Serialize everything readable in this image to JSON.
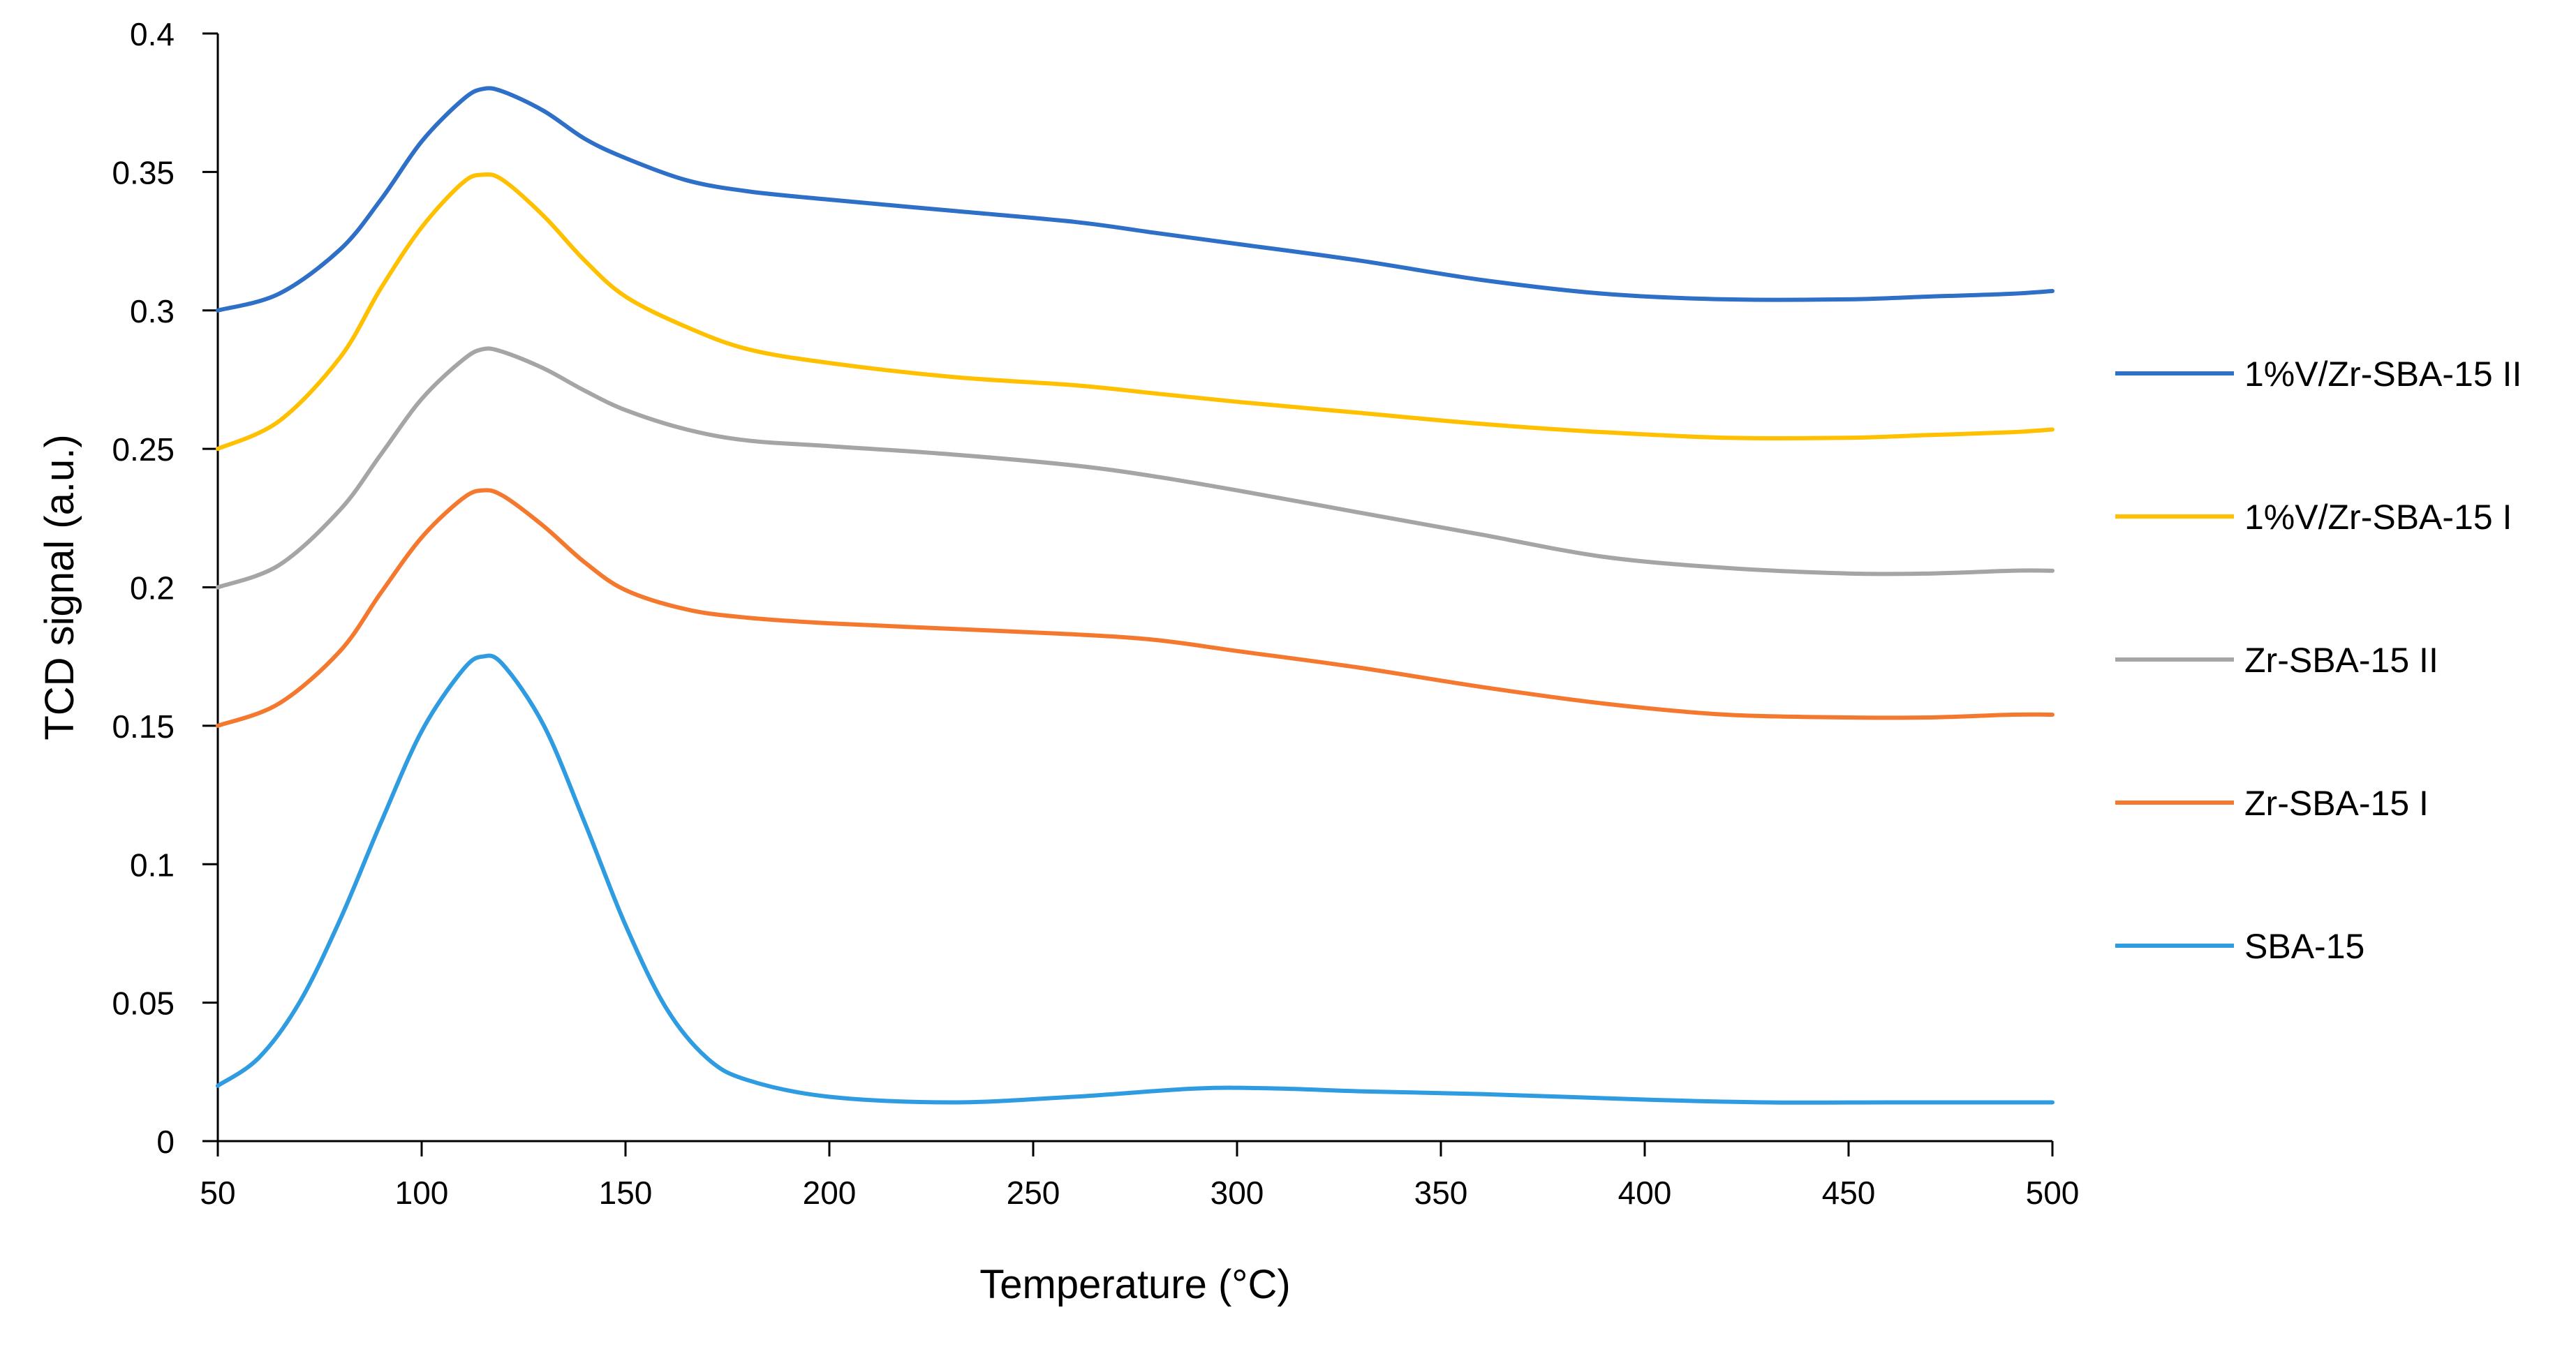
{
  "chart_data": {
    "type": "line",
    "title": "",
    "xlabel": "Temperature (°C)",
    "ylabel": "TCD signal (a.u.)",
    "xlim": [
      50,
      500
    ],
    "ylim": [
      0,
      0.4
    ],
    "grid": false,
    "legend_position": "right",
    "x_ticks": [
      "50",
      "100",
      "150",
      "200",
      "250",
      "300",
      "350",
      "400",
      "450",
      "500"
    ],
    "y_ticks": [
      "0",
      "0.05",
      "0.1",
      "0.15",
      "0.2",
      "0.25",
      "0.3",
      "0.35",
      "0.4"
    ],
    "legend_order": [
      "1%V/Zr-SBA-15 II",
      "1%V/Zr-SBA-15 I",
      "Zr-SBA-15 II",
      "Zr-SBA-15 I",
      "SBA-15"
    ],
    "series": [
      {
        "name": "1%V/Zr-SBA-15 II",
        "color": "#2E6FC8",
        "x": [
          50,
          65,
          80,
          90,
          100,
          110,
          115,
          120,
          130,
          140,
          150,
          165,
          180,
          200,
          230,
          260,
          280,
          300,
          330,
          360,
          390,
          420,
          450,
          470,
          490,
          500
        ],
        "y": [
          0.3,
          0.306,
          0.322,
          0.34,
          0.361,
          0.376,
          0.38,
          0.379,
          0.372,
          0.362,
          0.355,
          0.347,
          0.343,
          0.34,
          0.336,
          0.332,
          0.328,
          0.324,
          0.318,
          0.311,
          0.306,
          0.304,
          0.304,
          0.305,
          0.306,
          0.307
        ]
      },
      {
        "name": "1%V/Zr-SBA-15 I",
        "color": "#FFC000",
        "x": [
          50,
          65,
          80,
          90,
          100,
          110,
          115,
          120,
          130,
          140,
          150,
          165,
          180,
          200,
          230,
          260,
          280,
          300,
          330,
          360,
          390,
          420,
          450,
          470,
          490,
          500
        ],
        "y": [
          0.25,
          0.26,
          0.283,
          0.308,
          0.33,
          0.346,
          0.349,
          0.347,
          0.334,
          0.318,
          0.305,
          0.294,
          0.286,
          0.281,
          0.276,
          0.273,
          0.27,
          0.267,
          0.263,
          0.259,
          0.256,
          0.254,
          0.254,
          0.255,
          0.256,
          0.257
        ]
      },
      {
        "name": "Zr-SBA-15 II",
        "color": "#A5A5A5",
        "x": [
          50,
          65,
          80,
          90,
          100,
          110,
          115,
          120,
          130,
          140,
          150,
          165,
          180,
          200,
          230,
          260,
          280,
          300,
          330,
          360,
          390,
          420,
          450,
          470,
          490,
          500
        ],
        "y": [
          0.2,
          0.208,
          0.228,
          0.248,
          0.268,
          0.282,
          0.286,
          0.285,
          0.279,
          0.271,
          0.264,
          0.257,
          0.253,
          0.251,
          0.248,
          0.244,
          0.24,
          0.235,
          0.227,
          0.219,
          0.211,
          0.207,
          0.205,
          0.205,
          0.206,
          0.206
        ]
      },
      {
        "name": "Zr-SBA-15 I",
        "color": "#F4792E",
        "x": [
          50,
          65,
          80,
          90,
          100,
          110,
          115,
          120,
          130,
          140,
          150,
          165,
          180,
          200,
          230,
          260,
          280,
          300,
          330,
          360,
          390,
          420,
          450,
          470,
          490,
          500
        ],
        "y": [
          0.15,
          0.158,
          0.177,
          0.198,
          0.218,
          0.232,
          0.235,
          0.233,
          0.222,
          0.209,
          0.199,
          0.192,
          0.189,
          0.187,
          0.185,
          0.183,
          0.181,
          0.177,
          0.171,
          0.164,
          0.158,
          0.154,
          0.153,
          0.153,
          0.154,
          0.154
        ]
      },
      {
        "name": "SBA-15",
        "color": "#2F9BE0",
        "x": [
          50,
          60,
          70,
          80,
          90,
          100,
          110,
          115,
          120,
          130,
          140,
          150,
          160,
          170,
          180,
          200,
          230,
          260,
          290,
          310,
          330,
          360,
          400,
          430,
          460,
          490,
          500
        ],
        "y": [
          0.02,
          0.03,
          0.05,
          0.08,
          0.115,
          0.148,
          0.17,
          0.175,
          0.172,
          0.15,
          0.115,
          0.078,
          0.048,
          0.03,
          0.022,
          0.016,
          0.014,
          0.016,
          0.019,
          0.019,
          0.018,
          0.017,
          0.015,
          0.014,
          0.014,
          0.014,
          0.014
        ]
      }
    ]
  }
}
